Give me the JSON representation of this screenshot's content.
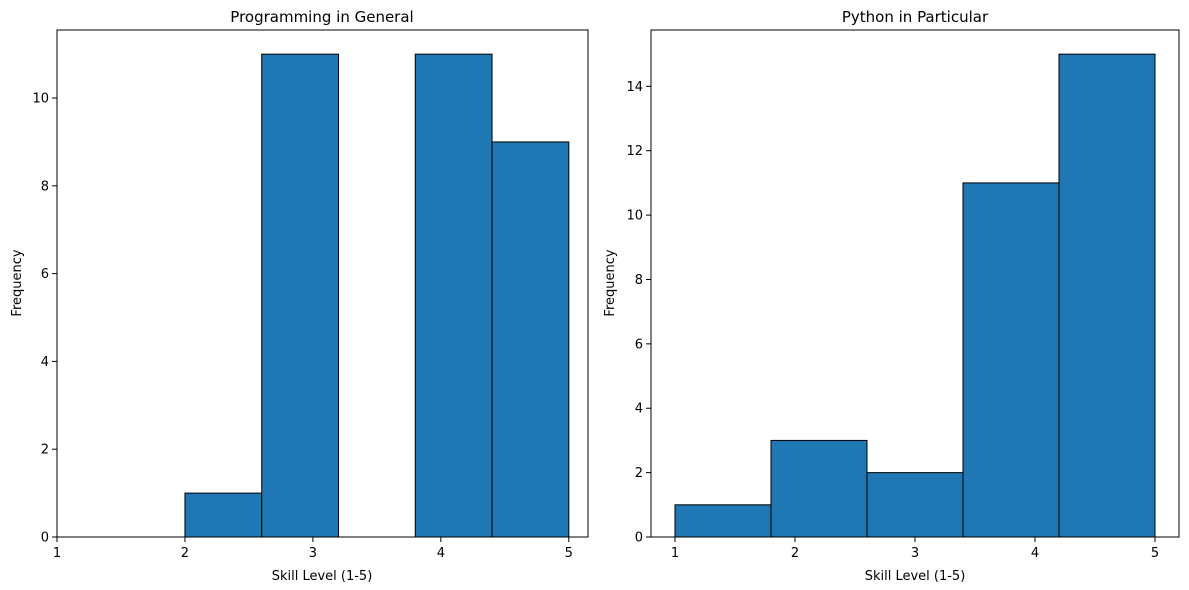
{
  "chart_data": [
    {
      "type": "bar",
      "title": "Programming in General",
      "xlabel": "Skill Level (1-5)",
      "ylabel": "Frequency",
      "bins": [
        {
          "start": 2.0,
          "end": 2.6,
          "value": 1
        },
        {
          "start": 2.6,
          "end": 3.2,
          "value": 11
        },
        {
          "start": 3.2,
          "end": 3.8,
          "value": 0
        },
        {
          "start": 3.8,
          "end": 4.4,
          "value": 11
        },
        {
          "start": 4.4,
          "end": 5.0,
          "value": 9
        }
      ],
      "xticks": [
        "1",
        "2",
        "3",
        "4",
        "5"
      ],
      "yticks": [
        "0",
        "2",
        "4",
        "6",
        "8",
        "10"
      ],
      "xlim": [
        1,
        5.15
      ],
      "ylim": [
        0,
        11.55
      ],
      "bar_color": "#1f77b4",
      "edge_color": "#000000",
      "grid": false
    },
    {
      "type": "bar",
      "title": "Python in Particular",
      "xlabel": "Skill Level (1-5)",
      "ylabel": "Frequency",
      "bins": [
        {
          "start": 1.0,
          "end": 1.8,
          "value": 1
        },
        {
          "start": 1.8,
          "end": 2.6,
          "value": 3
        },
        {
          "start": 2.6,
          "end": 3.4,
          "value": 2
        },
        {
          "start": 3.4,
          "end": 4.2,
          "value": 11
        },
        {
          "start": 4.2,
          "end": 5.0,
          "value": 15
        }
      ],
      "xticks": [
        "1",
        "2",
        "3",
        "4",
        "5"
      ],
      "yticks": [
        "0",
        "2",
        "4",
        "6",
        "8",
        "10",
        "12",
        "14"
      ],
      "xlim": [
        0.8,
        5.2
      ],
      "ylim": [
        0,
        15.75
      ],
      "bar_color": "#1f77b4",
      "edge_color": "#000000",
      "grid": false
    }
  ]
}
